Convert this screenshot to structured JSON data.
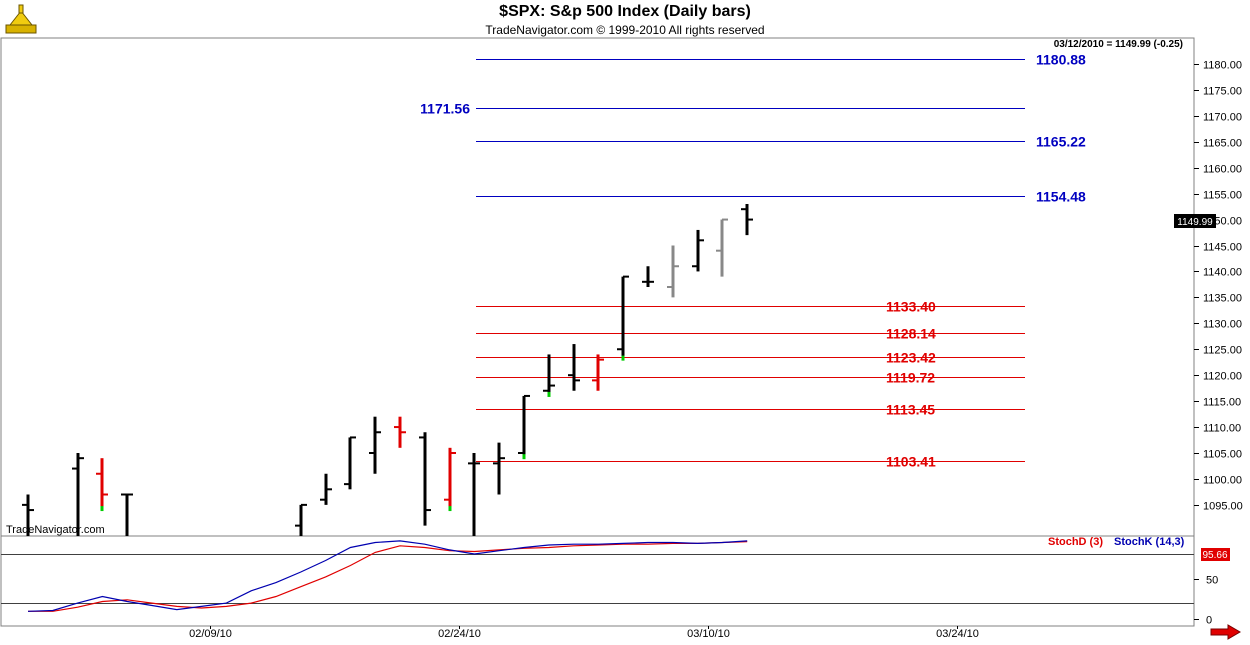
{
  "header": {
    "title": "$SPX:  S&p 500 Index  (Daily bars)",
    "subtitle": "TradeNavigator.com © 1999-2010 All rights reserved"
  },
  "readout": "03/12/2010 = 1149.99 (-0.25)",
  "watermark": "TradeNavigator.com",
  "last_price_badge": "1149.99",
  "stoch_value_badge": "95.66",
  "icons": {
    "logo": "trade-navigator-logo-icon",
    "next": "red-right-arrow-icon"
  },
  "colors": {
    "blue_level": "#0000c0",
    "red_level": "#e00000",
    "stochD": "#e00000",
    "stochK": "#0000b0",
    "up_tick": "#00cc00"
  },
  "chart_data": [
    {
      "type": "bar",
      "title": "$SPX:  S&p 500 Index  (Daily bars)",
      "ylim": [
        1089,
        1185
      ],
      "y_ticks": [
        1095,
        1100,
        1105,
        1110,
        1115,
        1120,
        1125,
        1130,
        1135,
        1140,
        1145,
        1150,
        1155,
        1160,
        1165,
        1170,
        1175,
        1180
      ],
      "y_tick_labels": [
        "1095.00",
        "1100.00",
        "1105.00",
        "1110.00",
        "1115.00",
        "1120.00",
        "1125.00",
        "1130.00",
        "1135.00",
        "1140.00",
        "1145.00",
        "1150.00",
        "1155.00",
        "1160.00",
        "1165.00",
        "1170.00",
        "1175.00",
        "1180.00"
      ],
      "x_tick_labels": [
        "02/09/10",
        "02/24/10",
        "03/10/10",
        "03/24/10"
      ],
      "bars": [
        {
          "x": 0,
          "o": 1095,
          "h": 1097,
          "l": 1089,
          "c": 1094,
          "color": "#000000"
        },
        {
          "x": 2,
          "o": 1102,
          "h": 1105,
          "l": 1089,
          "c": 1104,
          "color": "#000000"
        },
        {
          "x": 3,
          "o": 1101,
          "h": 1104,
          "l": 1094,
          "c": 1097,
          "color": "#e00000",
          "uptick": true
        },
        {
          "x": 4,
          "o": 1097,
          "h": 1097,
          "l": 1089,
          "c": 1097,
          "color": "#000000"
        },
        {
          "x": 11,
          "o": 1091,
          "h": 1095,
          "l": 1089,
          "c": 1095,
          "color": "#000000"
        },
        {
          "x": 12,
          "o": 1096,
          "h": 1101,
          "l": 1095,
          "c": 1098,
          "color": "#000000"
        },
        {
          "x": 13,
          "o": 1099,
          "h": 1108,
          "l": 1098,
          "c": 1108,
          "color": "#000000"
        },
        {
          "x": 14,
          "o": 1105,
          "h": 1112,
          "l": 1101,
          "c": 1109,
          "color": "#000000"
        },
        {
          "x": 15,
          "o": 1110,
          "h": 1112,
          "l": 1106,
          "c": 1109,
          "color": "#e00000"
        },
        {
          "x": 16,
          "o": 1108,
          "h": 1109,
          "l": 1091,
          "c": 1094,
          "color": "#000000"
        },
        {
          "x": 17,
          "o": 1096,
          "h": 1106,
          "l": 1094,
          "c": 1105,
          "color": "#e00000",
          "uptick": true
        },
        {
          "x": 18,
          "o": 1103,
          "h": 1105,
          "l": 1089,
          "c": 1103,
          "color": "#000000"
        },
        {
          "x": 19,
          "o": 1103,
          "h": 1107,
          "l": 1097,
          "c": 1104,
          "color": "#000000"
        },
        {
          "x": 20,
          "o": 1105,
          "h": 1116,
          "l": 1104,
          "c": 1116,
          "color": "#000000",
          "uptick": true
        },
        {
          "x": 21,
          "o": 1117,
          "h": 1124,
          "l": 1116,
          "c": 1118,
          "color": "#000000",
          "uptick": true
        },
        {
          "x": 22,
          "o": 1120,
          "h": 1126,
          "l": 1117,
          "c": 1119,
          "color": "#000000"
        },
        {
          "x": 23,
          "o": 1119,
          "h": 1124,
          "l": 1117,
          "c": 1123,
          "color": "#e00000"
        },
        {
          "x": 24,
          "o": 1125,
          "h": 1139,
          "l": 1123,
          "c": 1139,
          "color": "#000000",
          "uptick": true
        },
        {
          "x": 25,
          "o": 1138,
          "h": 1141,
          "l": 1137,
          "c": 1138,
          "color": "#000000"
        },
        {
          "x": 26,
          "o": 1137,
          "h": 1145,
          "l": 1135,
          "c": 1141,
          "color": "#888888"
        },
        {
          "x": 27,
          "o": 1141,
          "h": 1148,
          "l": 1140,
          "c": 1146,
          "color": "#000000"
        },
        {
          "x": 28,
          "o": 1144,
          "h": 1150,
          "l": 1139,
          "c": 1150,
          "color": "#888888"
        },
        {
          "x": 29,
          "o": 1152,
          "h": 1153,
          "l": 1147,
          "c": 1150,
          "color": "#000000"
        }
      ],
      "levels": [
        {
          "value": 1180.88,
          "label": "1180.88",
          "color": "#0000c0",
          "label_side": "right"
        },
        {
          "value": 1171.56,
          "label": "1171.56",
          "color": "#0000c0",
          "label_side": "left"
        },
        {
          "value": 1165.22,
          "label": "1165.22",
          "color": "#0000c0",
          "label_side": "right"
        },
        {
          "value": 1154.48,
          "label": "1154.48",
          "color": "#0000c0",
          "label_side": "right"
        },
        {
          "value": 1133.4,
          "label": "1133.40",
          "color": "#e00000",
          "label_side": "right"
        },
        {
          "value": 1128.14,
          "label": "1128.14",
          "color": "#e00000",
          "label_side": "right"
        },
        {
          "value": 1123.42,
          "label": "1123.42",
          "color": "#e00000",
          "label_side": "right"
        },
        {
          "value": 1119.72,
          "label": "1119.72",
          "color": "#e00000",
          "label_side": "right"
        },
        {
          "value": 1113.45,
          "label": "1113.45",
          "color": "#e00000",
          "label_side": "right"
        },
        {
          "value": 1103.41,
          "label": "1103.41",
          "color": "#e00000",
          "label_side": "right"
        }
      ]
    },
    {
      "type": "line",
      "ylim": [
        -8,
        102
      ],
      "y_ticks": [
        50,
        0
      ],
      "y_tick_labels": [
        "50",
        "0"
      ],
      "reference_lines": [
        80,
        20
      ],
      "x": [
        0,
        1,
        2,
        3,
        4,
        5,
        6,
        7,
        8,
        9,
        10,
        11,
        12,
        13,
        14,
        15,
        16,
        17,
        18,
        19,
        20,
        21,
        22,
        23,
        24,
        25,
        26,
        27,
        28,
        29
      ],
      "series": [
        {
          "name": "StochD (3)",
          "color": "#e00000",
          "values": [
            10,
            10,
            15,
            22,
            24,
            20,
            16,
            14,
            16,
            20,
            28,
            40,
            52,
            66,
            82,
            90,
            88,
            84,
            83,
            85,
            87,
            88,
            90,
            91,
            92,
            92,
            93,
            93,
            94,
            95
          ]
        },
        {
          "name": "StochK (14,3)",
          "color": "#0000b0",
          "values": [
            10,
            11,
            20,
            28,
            22,
            17,
            12,
            16,
            20,
            35,
            45,
            58,
            72,
            88,
            94,
            96,
            92,
            85,
            80,
            84,
            88,
            91,
            92,
            92,
            93,
            94,
            94,
            93,
            94,
            96
          ]
        }
      ]
    }
  ]
}
